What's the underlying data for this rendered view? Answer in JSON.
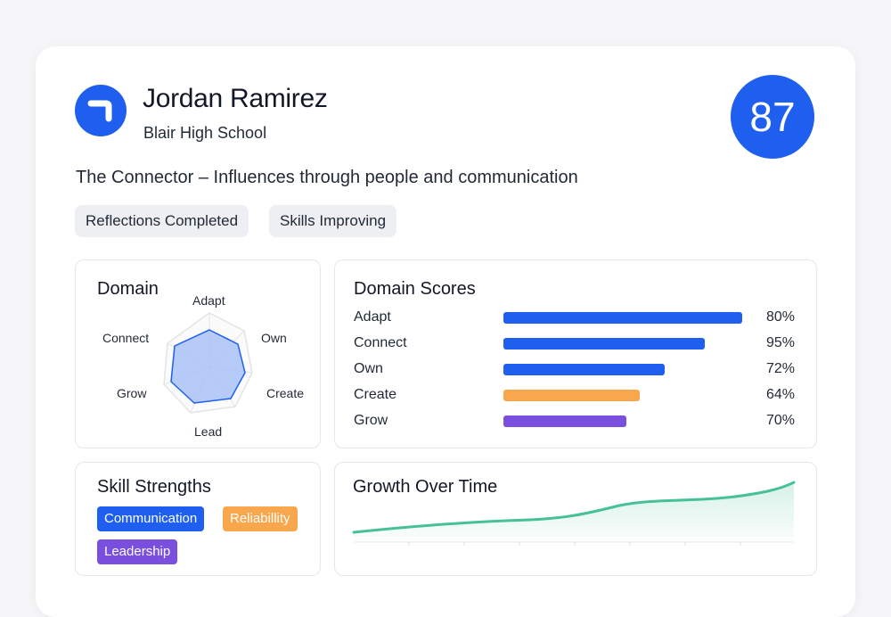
{
  "profile": {
    "name": "Jordan Ramirez",
    "school": "Blair High School",
    "score": "87",
    "archetype": "The Connector – Influences through people and communication",
    "logo_icon": "bracket-logo-icon"
  },
  "tags": [
    "Reflections Completed",
    "Skills Improving"
  ],
  "domain_panel": {
    "title": "Domain",
    "axes": [
      "Adapt",
      "Own",
      "Create",
      "Lead",
      "Grow",
      "Connect"
    ]
  },
  "scores_panel": {
    "title": "Domain Scores",
    "rows": [
      {
        "label": "Adapt",
        "value": 80,
        "display": "80%",
        "color": "#1f5ff0"
      },
      {
        "label": "Connect",
        "value": 95,
        "display": "95%",
        "color": "#1f5ff0"
      },
      {
        "label": "Own",
        "value": 72,
        "display": "72%",
        "color": "#1f5ff0"
      },
      {
        "label": "Create",
        "value": 64,
        "display": "64%",
        "color": "#f8a74c"
      },
      {
        "label": "Grow",
        "value": 70,
        "display": "70%",
        "color": "#7a4fe0"
      }
    ]
  },
  "strengths_panel": {
    "title": "Skill Strengths",
    "chips": [
      {
        "label": "Communication",
        "color": "#1f5ff0",
        "text_color": "#ffffff"
      },
      {
        "label": "Reliabillity",
        "color": "#f8a74c",
        "text_color": "#ffffff"
      },
      {
        "label": "Leadership",
        "color": "#7a4fe0",
        "text_color": "#ffffff"
      }
    ]
  },
  "growth_panel": {
    "title": "Growth Over Time",
    "line_color": "#46c195"
  }
}
